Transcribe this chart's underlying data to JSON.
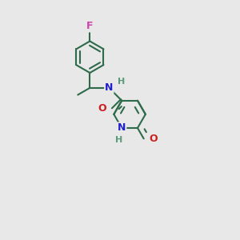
{
  "background_color": "#e8e8e8",
  "bond_color": "#2d6b4a",
  "N_color": "#2020cc",
  "O_color": "#cc2020",
  "F_color": "#cc44aa",
  "H_color": "#5a9a7a",
  "line_width": 1.5,
  "figsize": [
    3.0,
    3.0
  ],
  "dpi": 100,
  "xlim": [
    -1.0,
    2.5
  ],
  "ylim": [
    -2.8,
    1.5
  ]
}
